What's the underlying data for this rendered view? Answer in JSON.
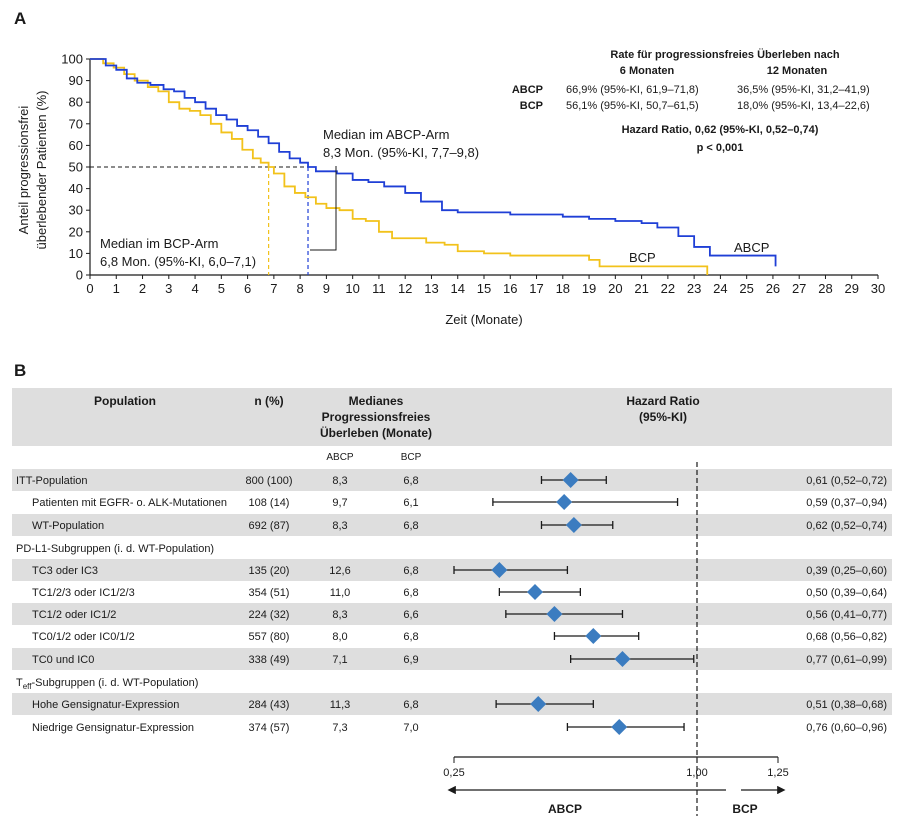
{
  "panel_a": {
    "label": "A",
    "rates_title": "Rate für progressionsfreies Überleben nach",
    "rates_col_6": "6 Monaten",
    "rates_col_12": "12 Monaten",
    "rates_rows": [
      {
        "arm": "ABCP",
        "m6": "66,9% (95%-KI, 61,9–71,8)",
        "m12": "36,5% (95%-KI, 31,2–41,9)"
      },
      {
        "arm": "BCP",
        "m6": "56,1% (95%-KI, 50,7–61,5)",
        "m12": "18,0% (95%-KI, 13,4–22,6)"
      }
    ],
    "hazard_text": "Hazard Ratio, 0,62 (95%-KI, 0,52–0,74)",
    "p_text": "p < 0,001",
    "median_abcp_l1": "Median im ABCP-Arm",
    "median_abcp_l2": "8,3 Mon. (95%-KI, 7,7–9,8)",
    "median_bcp_l1": "Median im BCP-Arm",
    "median_bcp_l2": "6,8 Mon. (95%-KI, 6,0–7,1)",
    "curve_label_abcp": "ABCP",
    "curve_label_bcp": "BCP"
  },
  "chart_data": [
    {
      "type": "line",
      "xlabel": "Zeit (Monate)",
      "ylabel_line1": "Anteil progressionsfrei",
      "ylabel_line2": "überlebender Patienten (%)",
      "xlim": [
        0,
        30
      ],
      "ylim": [
        0,
        100
      ],
      "xticks": [
        0,
        1,
        2,
        3,
        4,
        5,
        6,
        7,
        8,
        9,
        10,
        11,
        12,
        13,
        14,
        15,
        16,
        17,
        18,
        19,
        20,
        21,
        22,
        23,
        24,
        25,
        26,
        27,
        28,
        29,
        30
      ],
      "yticks": [
        0,
        10,
        20,
        30,
        40,
        50,
        60,
        70,
        80,
        90,
        100
      ],
      "colors": {
        "ABCP": "#1f3fd6",
        "BCP": "#f2c21b"
      },
      "medians": {
        "ABCP": 8.3,
        "BCP": 6.8
      },
      "series": [
        {
          "name": "ABCP",
          "color": "#1f3fd6",
          "x": [
            0,
            0.3,
            0.6,
            1.0,
            1.4,
            1.8,
            2.3,
            2.8,
            3.2,
            3.6,
            4.0,
            4.4,
            4.8,
            5.2,
            5.6,
            6.0,
            6.4,
            6.8,
            7.2,
            7.6,
            8.0,
            8.3,
            8.6,
            9.0,
            9.4,
            10.0,
            10.6,
            11.2,
            12.0,
            12.6,
            13.4,
            14.0,
            15.0,
            16.0,
            17.0,
            18.0,
            19.0,
            20.0,
            21.0,
            21.6,
            22.4,
            23.0,
            23.6,
            24.5,
            25.5,
            26.1
          ],
          "y": [
            100,
            100,
            97,
            95,
            91,
            89,
            88,
            86,
            85,
            82,
            80,
            77,
            74,
            72,
            69,
            67,
            64,
            61,
            57,
            54,
            52,
            50,
            48,
            48,
            47,
            44,
            43,
            41,
            38,
            34,
            30,
            29,
            29,
            28,
            28,
            27,
            26,
            25,
            24,
            22,
            18,
            13,
            9,
            9,
            9,
            4
          ]
        },
        {
          "name": "BCP",
          "color": "#f2c21b",
          "x": [
            0,
            0.5,
            0.9,
            1.3,
            1.7,
            2.2,
            2.6,
            3.0,
            3.4,
            3.8,
            4.2,
            4.6,
            5.0,
            5.4,
            5.8,
            6.2,
            6.5,
            6.8,
            7.0,
            7.4,
            7.8,
            8.2,
            8.6,
            9.0,
            9.5,
            10.0,
            10.5,
            11.0,
            11.5,
            12.0,
            12.8,
            13.5,
            14.0,
            15.0,
            16.0,
            17.0,
            18.0,
            19.0,
            19.4,
            20.0,
            21.0,
            22.0,
            23.0,
            23.5
          ],
          "y": [
            100,
            98,
            96,
            93,
            90,
            87,
            85,
            80,
            77,
            76,
            74,
            70,
            66,
            63,
            58,
            54,
            52,
            50,
            47,
            41,
            38,
            36,
            33,
            31,
            30,
            26,
            25,
            20,
            17,
            17,
            15,
            14,
            11,
            10,
            9,
            9,
            9,
            7,
            4,
            4,
            4,
            4,
            4,
            0
          ]
        }
      ]
    },
    {
      "type": "forest",
      "xlim": [
        0.25,
        1.25
      ],
      "xticks": [
        "0,25",
        "1,00",
        "1,25"
      ],
      "xtick_values": [
        0.25,
        1.0,
        1.25
      ],
      "reference": 1.0,
      "direction_left": "ABCP",
      "direction_right": "BCP",
      "marker_color": "#3b7cc0",
      "headers": {
        "population": "Population",
        "n": "n (%)",
        "median_l1": "Medianes",
        "median_l2": "Progressionsfreies",
        "median_l3": "Überleben (Monate)",
        "hr_l1": "Hazard Ratio",
        "hr_l2": "(95%-KI)",
        "sub_abcp": "ABCP",
        "sub_bcp": "BCP"
      },
      "groups": [
        {
          "title": "",
          "title_sub": "",
          "title_rest": ""
        },
        {
          "title": "PD-L1-Subgruppen (i. d. WT-Population)",
          "title_sub": "",
          "title_rest": ""
        },
        {
          "title": "T",
          "title_sub": "eff",
          "title_rest": "-Subgruppen (i. d. WT-Population)"
        }
      ],
      "rows": [
        {
          "label": "ITT-Population",
          "n": "800 (100)",
          "abcp": "8,3",
          "bcp": "6,8",
          "hr": 0.61,
          "lo": 0.52,
          "hi": 0.72,
          "text": "0,61 (0,52–0,72)",
          "shade": true,
          "indent": false
        },
        {
          "label": "Patienten mit EGFR- o. ALK-Mutationen",
          "n": "108 (14)",
          "abcp": "9,7",
          "bcp": "6,1",
          "hr": 0.59,
          "lo": 0.37,
          "hi": 0.94,
          "text": "0,59 (0,37–0,94)",
          "shade": false,
          "indent": true
        },
        {
          "label": "WT-Population",
          "n": "692 (87)",
          "abcp": "8,3",
          "bcp": "6,8",
          "hr": 0.62,
          "lo": 0.52,
          "hi": 0.74,
          "text": "0,62 (0,52–0,74)",
          "shade": true,
          "indent": true
        },
        {
          "label": "TC3 oder IC3",
          "n": "135 (20)",
          "abcp": "12,6",
          "bcp": "6,8",
          "hr": 0.39,
          "lo": 0.25,
          "hi": 0.6,
          "text": "0,39 (0,25–0,60)",
          "shade": true,
          "indent": true
        },
        {
          "label": "TC1/2/3 oder IC1/2/3",
          "n": "354 (51)",
          "abcp": "11,0",
          "bcp": "6,8",
          "hr": 0.5,
          "lo": 0.39,
          "hi": 0.64,
          "text": "0,50 (0,39–0,64)",
          "shade": false,
          "indent": true
        },
        {
          "label": "TC1/2 oder IC1/2",
          "n": "224 (32)",
          "abcp": "8,3",
          "bcp": "6,6",
          "hr": 0.56,
          "lo": 0.41,
          "hi": 0.77,
          "text": "0,56 (0,41–0,77)",
          "shade": true,
          "indent": true
        },
        {
          "label": "TC0/1/2 oder IC0/1/2",
          "n": "557 (80)",
          "abcp": "8,0",
          "bcp": "6,8",
          "hr": 0.68,
          "lo": 0.56,
          "hi": 0.82,
          "text": "0,68 (0,56–0,82)",
          "shade": false,
          "indent": true
        },
        {
          "label": "TC0 und IC0",
          "n": "338 (49)",
          "abcp": "7,1",
          "bcp": "6,9",
          "hr": 0.77,
          "lo": 0.61,
          "hi": 0.99,
          "text": "0,77 (0,61–0,99)",
          "shade": true,
          "indent": true
        },
        {
          "label": "Hohe Gensignatur-Expression",
          "n": "284 (43)",
          "abcp": "11,3",
          "bcp": "6,8",
          "hr": 0.51,
          "lo": 0.38,
          "hi": 0.68,
          "text": "0,51 (0,38–0,68)",
          "shade": true,
          "indent": true
        },
        {
          "label": "Niedrige Gensignatur-Expression",
          "n": "374 (57)",
          "abcp": "7,3",
          "bcp": "7,0",
          "hr": 0.76,
          "lo": 0.6,
          "hi": 0.96,
          "text": "0,76 (0,60–0,96)",
          "shade": false,
          "indent": true
        }
      ]
    }
  ],
  "panel_b": {
    "label": "B"
  }
}
